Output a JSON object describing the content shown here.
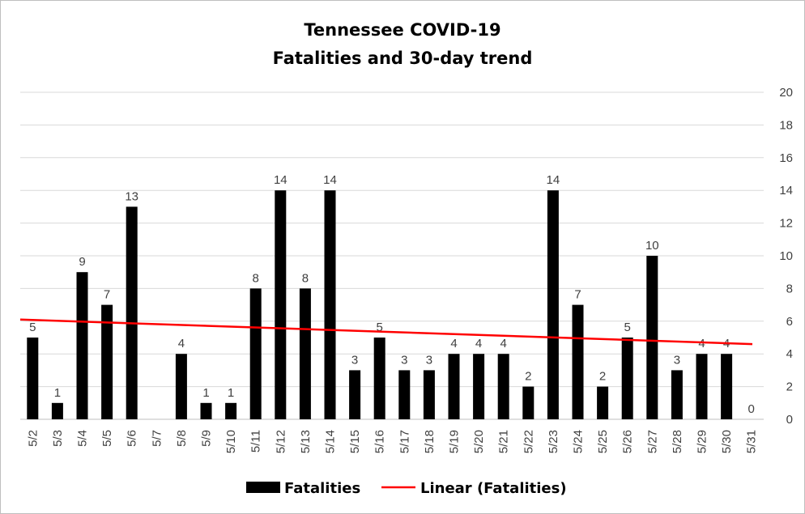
{
  "chart_data": {
    "type": "bar",
    "title_lines": [
      "Tennessee COVID-19",
      "Fatalities and 30-day trend"
    ],
    "categories": [
      "5/2",
      "5/3",
      "5/4",
      "5/5",
      "5/6",
      "5/7",
      "5/8",
      "5/9",
      "5/10",
      "5/11",
      "5/12",
      "5/13",
      "5/14",
      "5/15",
      "5/16",
      "5/17",
      "5/18",
      "5/19",
      "5/20",
      "5/21",
      "5/22",
      "5/23",
      "5/24",
      "5/25",
      "5/26",
      "5/27",
      "5/28",
      "5/29",
      "5/30",
      "5/31"
    ],
    "series": [
      {
        "name": "Fatalities",
        "color": "#000000",
        "values": [
          5,
          1,
          9,
          7,
          13,
          null,
          4,
          1,
          1,
          8,
          14,
          8,
          14,
          3,
          5,
          3,
          3,
          4,
          4,
          4,
          2,
          14,
          7,
          2,
          5,
          10,
          3,
          4,
          4,
          0
        ],
        "data_labels": [
          "5",
          "1",
          "9",
          "7",
          "13",
          "",
          "4",
          "1",
          "1",
          "8",
          "14",
          "8",
          "14",
          "3",
          "5",
          "3",
          "3",
          "4",
          "4",
          "4",
          "2",
          "14",
          "7",
          "2",
          "5",
          "10",
          "3",
          "4",
          "4",
          "0"
        ]
      }
    ],
    "trendline": {
      "name": "Linear (Fatalities)",
      "color": "#ff0000",
      "start": 6.1,
      "end": 4.6
    },
    "y_axis": {
      "position": "right",
      "ylim": [
        0,
        20
      ],
      "step": 2,
      "tick_labels": [
        "0",
        "2",
        "4",
        "6",
        "8",
        "10",
        "12",
        "14",
        "16",
        "18",
        "20"
      ]
    },
    "grid": true,
    "gridline_color": "#d9d9d9",
    "legend": {
      "placement": "bottom",
      "entries": [
        "Fatalities",
        "Linear (Fatalities)"
      ]
    }
  }
}
